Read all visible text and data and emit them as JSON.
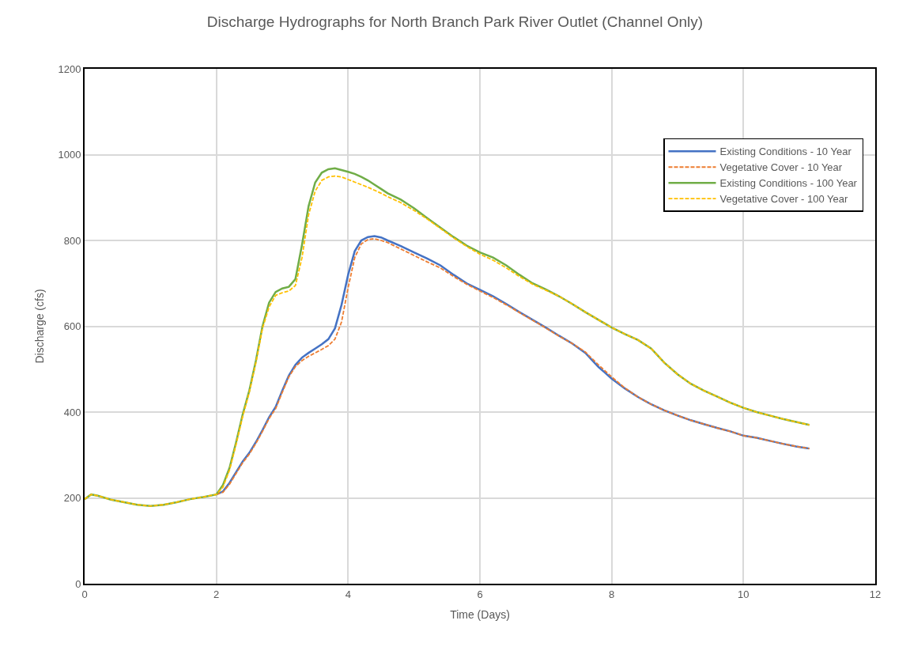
{
  "chart_data": {
    "type": "line",
    "title": "Discharge Hydrographs for North Branch Park River Outlet (Channel Only)",
    "xlabel": "Time (Days)",
    "ylabel": "Discharge (cfs)",
    "x": [
      0,
      0.1,
      0.2,
      0.4,
      0.6,
      0.8,
      1.0,
      1.2,
      1.4,
      1.6,
      1.8,
      2.0,
      2.1,
      2.2,
      2.3,
      2.4,
      2.5,
      2.6,
      2.7,
      2.8,
      2.9,
      3.0,
      3.1,
      3.2,
      3.3,
      3.4,
      3.5,
      3.6,
      3.7,
      3.8,
      3.9,
      4.0,
      4.1,
      4.2,
      4.3,
      4.4,
      4.5,
      4.6,
      4.8,
      5.0,
      5.2,
      5.4,
      5.6,
      5.8,
      6.0,
      6.2,
      6.4,
      6.6,
      6.8,
      7.0,
      7.2,
      7.4,
      7.6,
      7.8,
      8.0,
      8.2,
      8.4,
      8.6,
      8.8,
      9.0,
      9.2,
      9.4,
      9.6,
      9.8,
      10.0,
      10.2,
      10.4,
      10.6,
      10.8,
      11.0
    ],
    "series": [
      {
        "name": "Existing Conditions - 10 Year",
        "color": "#4472c4",
        "line_style": "solid",
        "values": [
          null,
          null,
          null,
          null,
          null,
          null,
          null,
          null,
          null,
          null,
          null,
          208,
          215,
          235,
          260,
          285,
          305,
          330,
          358,
          388,
          412,
          450,
          485,
          510,
          527,
          538,
          548,
          558,
          570,
          595,
          650,
          720,
          775,
          800,
          808,
          810,
          807,
          800,
          787,
          772,
          758,
          742,
          720,
          700,
          685,
          670,
          652,
          633,
          615,
          597,
          578,
          560,
          538,
          505,
          478,
          455,
          435,
          418,
          404,
          392,
          381,
          372,
          363,
          355,
          345,
          340,
          333,
          326,
          320,
          315
        ]
      },
      {
        "name": "Vegetative Cover - 10 Year",
        "color": "#ed7d31",
        "line_style": "dashed",
        "values": [
          null,
          null,
          null,
          null,
          null,
          null,
          null,
          null,
          null,
          null,
          null,
          208,
          213,
          232,
          257,
          282,
          302,
          327,
          355,
          385,
          408,
          446,
          482,
          506,
          520,
          530,
          538,
          546,
          555,
          570,
          610,
          690,
          760,
          792,
          802,
          804,
          800,
          795,
          780,
          765,
          750,
          736,
          716,
          698,
          682,
          667,
          650,
          632,
          614,
          596,
          577,
          560,
          540,
          510,
          482,
          456,
          435,
          418,
          404,
          392,
          381,
          372,
          363,
          355,
          345,
          340,
          333,
          326,
          320,
          315
        ]
      },
      {
        "name": "Existing Conditions - 100 Year",
        "color": "#70ad47",
        "line_style": "solid",
        "values": [
          197,
          208,
          205,
          196,
          190,
          184,
          181,
          184,
          190,
          197,
          202,
          208,
          230,
          270,
          330,
          395,
          450,
          520,
          600,
          655,
          680,
          688,
          692,
          710,
          790,
          880,
          935,
          958,
          966,
          968,
          964,
          960,
          955,
          948,
          940,
          930,
          920,
          910,
          895,
          875,
          852,
          830,
          808,
          788,
          772,
          760,
          742,
          720,
          700,
          686,
          670,
          652,
          633,
          615,
          597,
          582,
          568,
          548,
          515,
          488,
          466,
          450,
          436,
          422,
          410,
          400,
          392,
          384,
          377,
          370
        ]
      },
      {
        "name": "Vegetative Cover - 100 Year",
        "color": "#ffc000",
        "line_style": "dashed",
        "values": [
          197,
          208,
          205,
          196,
          190,
          184,
          181,
          184,
          190,
          197,
          202,
          208,
          225,
          265,
          325,
          390,
          446,
          515,
          595,
          645,
          672,
          678,
          682,
          695,
          760,
          860,
          915,
          940,
          948,
          950,
          948,
          942,
          936,
          930,
          924,
          917,
          910,
          902,
          888,
          870,
          850,
          828,
          806,
          786,
          768,
          754,
          736,
          716,
          698,
          684,
          670,
          652,
          633,
          615,
          597,
          582,
          568,
          548,
          515,
          488,
          466,
          450,
          436,
          422,
          410,
          400,
          392,
          384,
          377,
          370
        ]
      }
    ],
    "xlim": [
      0,
      12
    ],
    "xticks": [
      0,
      2,
      4,
      6,
      8,
      10,
      12
    ],
    "ylim": [
      0,
      1200
    ],
    "yticks": [
      0,
      200,
      400,
      600,
      800,
      1000,
      1200
    ],
    "grid": true,
    "legend": "top right",
    "marker": "none"
  }
}
